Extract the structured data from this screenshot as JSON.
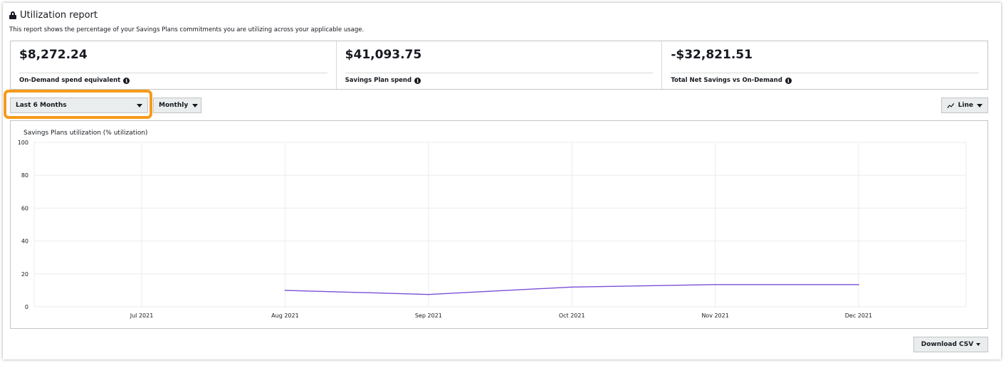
{
  "report": {
    "title": "Utilization report",
    "subtitle": "This report shows the percentage of your Savings Plans commitments you are utilizing across your applicable usage."
  },
  "summary": [
    {
      "value": "$8,272.24",
      "label": "On-Demand spend equivalent"
    },
    {
      "value": "$41,093.75",
      "label": "Savings Plan spend"
    },
    {
      "value": "-$32,821.51",
      "label": "Total Net Savings vs On-Demand"
    }
  ],
  "controls": {
    "range_label": "Last 6 Months",
    "granularity_label": "Monthly",
    "chart_type_label": "Line",
    "download_label": "Download CSV"
  },
  "colors": {
    "highlight": "#f59b1c",
    "series": "#7b4fd6",
    "grid": "#eaeded"
  },
  "chart_data": {
    "type": "line",
    "title": "Savings Plans utilization (% utilization)",
    "categories": [
      "Jul 2021",
      "Aug 2021",
      "Sep 2021",
      "Oct 2021",
      "Nov 2021",
      "Dec 2021"
    ],
    "values": [
      null,
      10,
      7.5,
      12,
      13.5,
      13.5
    ],
    "yticks": [
      0,
      20,
      40,
      60,
      80,
      100
    ],
    "ylim": [
      0,
      100
    ],
    "grid": true,
    "legend": "none"
  }
}
